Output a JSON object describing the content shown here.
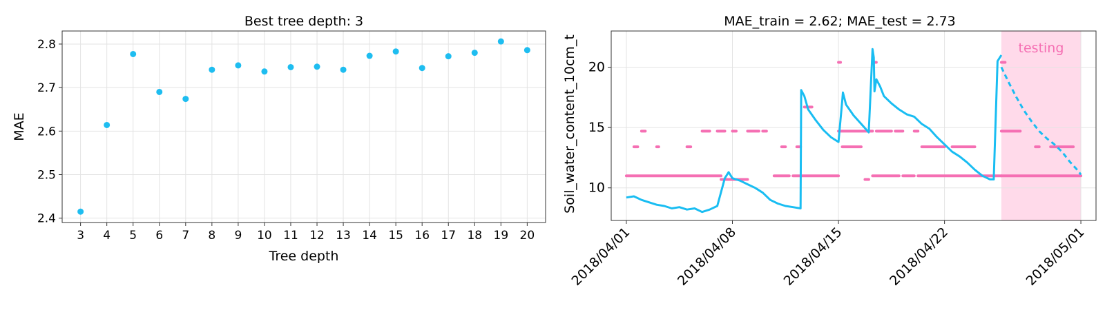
{
  "chart_data": [
    {
      "type": "scatter",
      "title": "Best tree depth: 3",
      "xlabel": "Tree depth",
      "ylabel": "MAE",
      "grid": true,
      "marker_color": "#1ebdf0",
      "x_ticks": [
        "3",
        "4",
        "5",
        "6",
        "7",
        "8",
        "9",
        "10",
        "11",
        "12",
        "13",
        "14",
        "15",
        "16",
        "17",
        "18",
        "19",
        "20"
      ],
      "y_ticks": [
        "2.4",
        "2.5",
        "2.6",
        "2.7",
        "2.8"
      ],
      "ylim": [
        2.39,
        2.83
      ],
      "x": [
        3,
        4,
        5,
        6,
        7,
        8,
        9,
        10,
        11,
        12,
        13,
        14,
        15,
        16,
        17,
        18,
        19,
        20
      ],
      "y": [
        2.415,
        2.614,
        2.777,
        2.69,
        2.674,
        2.741,
        2.751,
        2.737,
        2.747,
        2.748,
        2.741,
        2.773,
        2.783,
        2.745,
        2.772,
        2.78,
        2.806,
        2.786
      ]
    },
    {
      "type": "line",
      "title": "MAE_train = 2.62; MAE_test = 2.73",
      "xlabel": "",
      "ylabel": "Soil_water_content_10cm_t",
      "grid": true,
      "x_ticks": [
        "2018/04/01",
        "2018/04/08",
        "2018/04/15",
        "2018/04/22",
        "2018/05/01"
      ],
      "y_ticks": [
        "10",
        "15",
        "20"
      ],
      "ylim": [
        7.3,
        23.0
      ],
      "xlim": [
        "2018/03/31",
        "2018/05/02"
      ],
      "test_region": {
        "label": "testing",
        "start": "2018/04/25 18:00",
        "end": "2018/05/01",
        "color": "#ffdaea"
      },
      "series": [
        {
          "role": "observed",
          "color": "#19bdf2",
          "x": [
            "2018/04/01",
            "2018/04/01 12:00",
            "2018/04/02",
            "2018/04/02 12:00",
            "2018/04/03",
            "2018/04/03 12:00",
            "2018/04/04",
            "2018/04/04 12:00",
            "2018/04/05",
            "2018/04/05 12:00",
            "2018/04/06",
            "2018/04/06 12:00",
            "2018/04/07",
            "2018/04/07 12:00",
            "2018/04/07 18:00",
            "2018/04/08",
            "2018/04/08 12:00",
            "2018/04/09",
            "2018/04/09 12:00",
            "2018/04/10",
            "2018/04/10 12:00",
            "2018/04/11",
            "2018/04/11 12:00",
            "2018/04/12",
            "2018/04/12 12:00",
            "2018/04/12 13:00",
            "2018/04/12 18:00",
            "2018/04/13",
            "2018/04/13 12:00",
            "2018/04/14",
            "2018/04/14 12:00",
            "2018/04/15",
            "2018/04/15 06:00",
            "2018/04/15 07:00",
            "2018/04/15 12:00",
            "2018/04/16",
            "2018/04/16 12:00",
            "2018/04/17",
            "2018/04/17 06:00",
            "2018/04/17 08:00",
            "2018/04/17 09:00",
            "2018/04/17 12:00",
            "2018/04/17 18:00",
            "2018/04/18",
            "2018/04/18 12:00",
            "2018/04/19",
            "2018/04/19 12:00",
            "2018/04/20",
            "2018/04/20 12:00",
            "2018/04/21",
            "2018/04/21 12:00",
            "2018/04/22",
            "2018/04/22 12:00",
            "2018/04/23",
            "2018/04/23 12:00",
            "2018/04/24",
            "2018/04/24 12:00",
            "2018/04/25",
            "2018/04/25 06:00",
            "2018/04/25 12:00",
            "2018/04/25 18:00"
          ],
          "y": [
            9.2,
            9.3,
            9.0,
            8.8,
            8.6,
            8.5,
            8.3,
            8.4,
            8.2,
            8.3,
            8.0,
            8.2,
            8.5,
            10.8,
            11.3,
            10.8,
            10.6,
            10.3,
            10.0,
            9.6,
            9.0,
            8.7,
            8.5,
            8.4,
            8.3,
            18.1,
            17.6,
            16.5,
            15.6,
            14.8,
            14.2,
            13.8,
            17.2,
            17.9,
            16.9,
            16.0,
            15.3,
            14.6,
            21.5,
            20.8,
            18.0,
            19.0,
            18.4,
            17.6,
            17.0,
            16.5,
            16.1,
            15.9,
            15.3,
            14.9,
            14.2,
            13.6,
            13.0,
            12.6,
            12.1,
            11.5,
            11.0,
            10.7,
            10.7,
            20.5,
            21.0
          ]
        },
        {
          "role": "test-observed",
          "color": "#19bdf2",
          "x": [
            "2018/04/25 18:00",
            "2018/04/26 06:00",
            "2018/04/26 18:00",
            "2018/04/27 06:00",
            "2018/04/27 18:00",
            "2018/04/28 06:00",
            "2018/04/28 18:00",
            "2018/04/29 06:00",
            "2018/04/29 18:00",
            "2018/04/30 06:00",
            "2018/04/30 18:00",
            "2018/05/01"
          ],
          "y": [
            20.0,
            18.7,
            17.5,
            16.4,
            15.5,
            14.7,
            14.1,
            13.6,
            13.0,
            12.2,
            11.5,
            11.1
          ]
        },
        {
          "role": "predicted",
          "color": "#f56fb3",
          "levels": [
            {
              "y": 11.0,
              "spans": [
                [
                  "2018/04/01",
                  "2018/04/07 06:00"
                ],
                [
                  "2018/04/10 18:00",
                  "2018/04/11 18:00"
                ],
                [
                  "2018/04/12",
                  "2018/04/15"
                ],
                [
                  "2018/04/17 06:00",
                  "2018/04/19"
                ],
                [
                  "2018/04/19 06:00",
                  "2018/04/20"
                ],
                [
                  "2018/04/20 06:00",
                  "2018/04/25 18:00"
                ]
              ]
            },
            {
              "y": 10.7,
              "spans": [
                [
                  "2018/04/07 06:00",
                  "2018/04/09"
                ],
                [
                  "2018/04/16 18:00",
                  "2018/04/17"
                ]
              ]
            },
            {
              "y": 13.4,
              "spans": [
                [
                  "2018/04/01 12:00",
                  "2018/04/01 18:00"
                ],
                [
                  "2018/04/03",
                  "2018/04/03 03:00"
                ],
                [
                  "2018/04/05",
                  "2018/04/05 06:00"
                ],
                [
                  "2018/04/11 06:00",
                  "2018/04/11 12:00"
                ],
                [
                  "2018/04/12 06:00",
                  "2018/04/12 12:00"
                ],
                [
                  "2018/04/15 06:00",
                  "2018/04/16 12:00"
                ],
                [
                  "2018/04/20 12:00",
                  "2018/04/22"
                ],
                [
                  "2018/04/22 12:00",
                  "2018/04/24"
                ]
              ]
            },
            {
              "y": 14.7,
              "spans": [
                [
                  "2018/04/02",
                  "2018/04/02 06:00"
                ],
                [
                  "2018/04/06",
                  "2018/04/06 12:00"
                ],
                [
                  "2018/04/07",
                  "2018/04/07 12:00"
                ],
                [
                  "2018/04/08",
                  "2018/04/08 06:00"
                ],
                [
                  "2018/04/09",
                  "2018/04/09 18:00"
                ],
                [
                  "2018/04/10",
                  "2018/04/10 06:00"
                ],
                [
                  "2018/04/15",
                  "2018/04/17 06:00"
                ],
                [
                  "2018/04/17 12:00",
                  "2018/04/18 12:00"
                ],
                [
                  "2018/04/18 18:00",
                  "2018/04/19 06:00"
                ],
                [
                  "2018/04/20",
                  "2018/04/20 06:00"
                ]
              ]
            },
            {
              "y": 16.7,
              "spans": [
                [
                  "2018/04/12 18:00",
                  "2018/04/13 06:00"
                ]
              ]
            },
            {
              "y": 20.4,
              "spans": [
                [
                  "2018/04/15",
                  "2018/04/15 02:00"
                ],
                [
                  "2018/04/17 06:00",
                  "2018/04/17 12:00"
                ]
              ]
            }
          ]
        },
        {
          "role": "test-predicted",
          "color": "#f56fb3",
          "levels": [
            {
              "y": 11.0,
              "spans": [
                [
                  "2018/04/25 18:00",
                  "2018/05/01"
                ]
              ]
            },
            {
              "y": 14.7,
              "spans": [
                [
                  "2018/04/25 18:00",
                  "2018/04/27"
                ]
              ]
            },
            {
              "y": 13.4,
              "spans": [
                [
                  "2018/04/28",
                  "2018/04/28 06:00"
                ],
                [
                  "2018/04/29",
                  "2018/04/30 12:00"
                ]
              ]
            },
            {
              "y": 20.4,
              "spans": [
                [
                  "2018/04/25 18:00",
                  "2018/04/26"
                ]
              ]
            }
          ]
        }
      ]
    }
  ]
}
